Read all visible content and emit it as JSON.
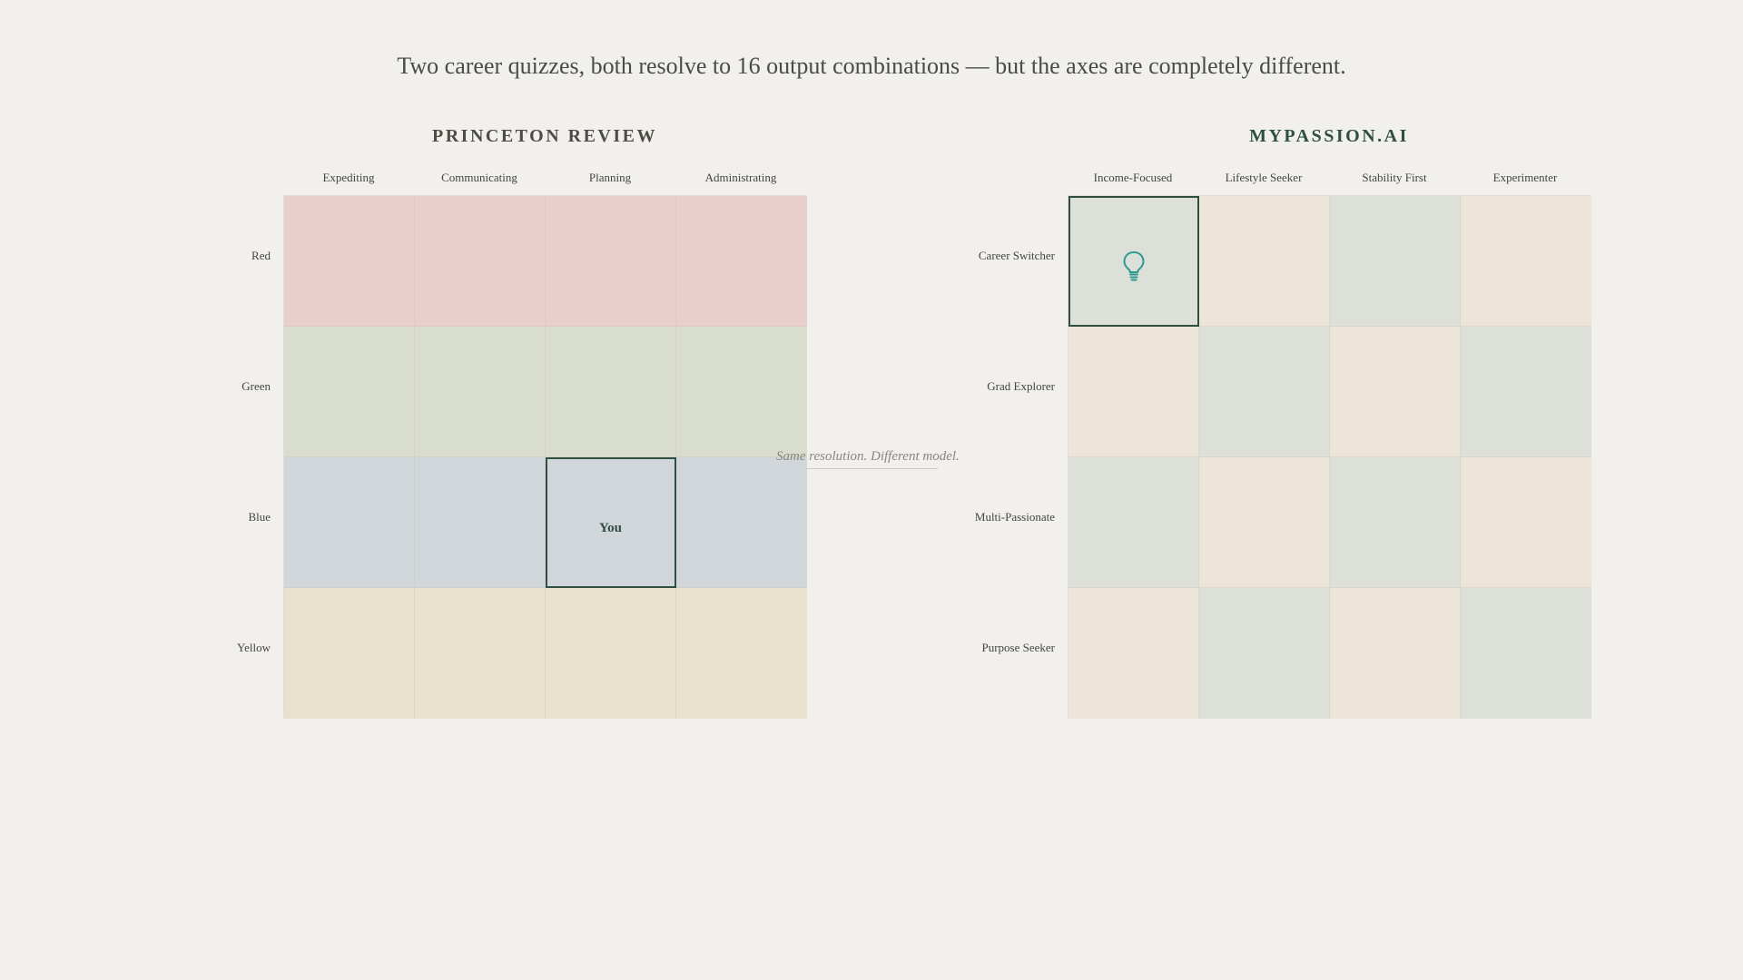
{
  "headline": "Two career quizzes, both resolve to 16 output combinations — but the axes are completely different.",
  "divider_note": "Same resolution. Different model.",
  "left": {
    "title": "PRINCETON REVIEW",
    "columns": [
      "Expediting",
      "Communicating",
      "Planning",
      "Administrating"
    ],
    "rows": [
      "Red",
      "Green",
      "Blue",
      "Yellow"
    ],
    "row_colors": [
      "#e9cfcb",
      "#d9ddcd",
      "#d1d6db",
      "#e9e1cb"
    ],
    "highlight": {
      "row": 2,
      "col": 2,
      "label": "You"
    }
  },
  "right": {
    "title": "MYPASSION.AI",
    "columns": [
      "Income-Focused",
      "Lifestyle Seeker",
      "Stability First",
      "Experimenter"
    ],
    "rows": [
      "Career Switcher",
      "Grad Explorer",
      "Multi-Passionate",
      "Purpose Seeker"
    ],
    "checker_colors": [
      "#dde0d8",
      "#ede4da"
    ],
    "highlight": {
      "row": 0,
      "col": 0,
      "icon": "lightbulb-icon"
    }
  },
  "colors": {
    "highlight_border": "#2f4f3f",
    "icon": "#2e9a8e"
  }
}
